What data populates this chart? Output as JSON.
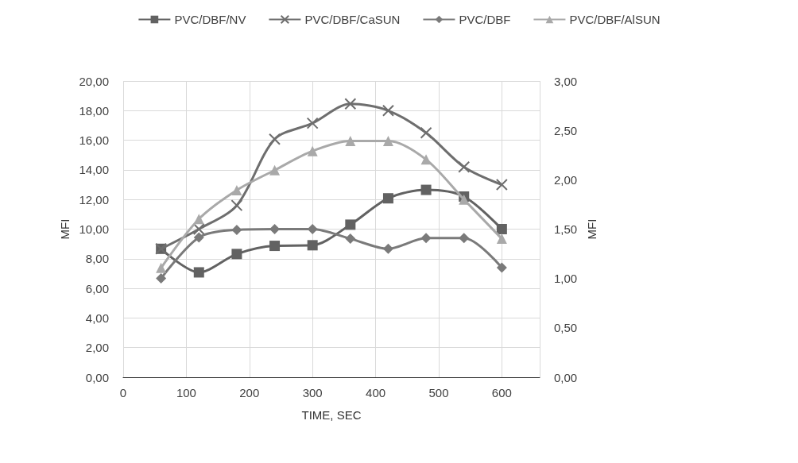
{
  "chart_data": {
    "type": "line",
    "xlabel": "TIME, SEC",
    "ylabel": "MFI",
    "y2label": "MFI",
    "x": [
      60,
      120,
      180,
      240,
      300,
      360,
      420,
      480,
      540,
      600
    ],
    "xlim": [
      0,
      660
    ],
    "xticks": [
      0,
      100,
      200,
      300,
      400,
      500,
      600
    ],
    "ylim": [
      0,
      20
    ],
    "yticks": [
      {
        "value": 0,
        "label": "0,00"
      },
      {
        "value": 2,
        "label": "2,00"
      },
      {
        "value": 4,
        "label": "4,00"
      },
      {
        "value": 6,
        "label": "6,00"
      },
      {
        "value": 8,
        "label": "8,00"
      },
      {
        "value": 10,
        "label": "10,00"
      },
      {
        "value": 12,
        "label": "12,00"
      },
      {
        "value": 14,
        "label": "14,00"
      },
      {
        "value": 16,
        "label": "16,00"
      },
      {
        "value": 18,
        "label": "18,00"
      },
      {
        "value": 20,
        "label": "20,00"
      }
    ],
    "y2lim": [
      0,
      3
    ],
    "y2ticks": [
      {
        "value": 0,
        "label": "0,00"
      },
      {
        "value": 0.5,
        "label": "0,50"
      },
      {
        "value": 1,
        "label": "1,00"
      },
      {
        "value": 1.5,
        "label": "1,50"
      },
      {
        "value": 2,
        "label": "2,00"
      },
      {
        "value": 2.5,
        "label": "2,50"
      },
      {
        "value": 3,
        "label": "3,00"
      }
    ],
    "grid": true,
    "legend": "top",
    "line_style": "solid",
    "series": [
      {
        "name": "PVC/DBF/NV",
        "color": "#626262",
        "marker": "square",
        "values": [
          8.67,
          7.08,
          8.32,
          8.87,
          8.91,
          10.3,
          12.08,
          12.65,
          12.2,
          10.0
        ]
      },
      {
        "name": "PVC/DBF/CaSUN",
        "color": "#6e6e6e",
        "marker": "cross",
        "values": [
          8.67,
          10.0,
          11.6,
          16.07,
          17.15,
          18.46,
          18.0,
          16.5,
          14.2,
          13.0
        ]
      },
      {
        "name": "PVC/DBF",
        "color": "#7a7a7a",
        "marker": "diamond",
        "values": [
          6.67,
          9.44,
          9.95,
          10.0,
          10.0,
          9.35,
          8.67,
          9.4,
          9.4,
          7.4
        ]
      },
      {
        "name": "PVC/DBF/AlSUN",
        "color": "#a9a9a9",
        "marker": "triangle",
        "values": [
          7.38,
          10.68,
          12.63,
          13.98,
          15.27,
          15.95,
          15.95,
          14.7,
          12.0,
          9.35
        ]
      }
    ]
  }
}
